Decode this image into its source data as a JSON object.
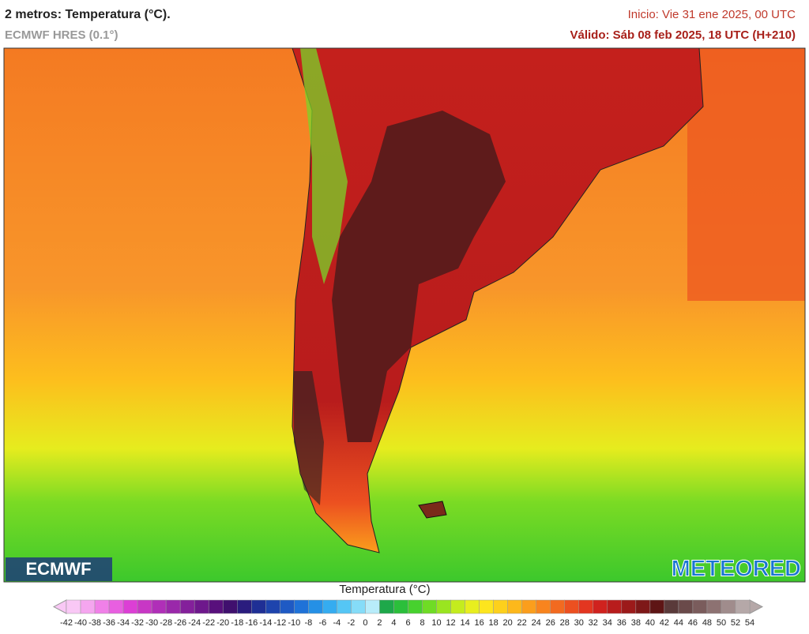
{
  "header": {
    "title": "2 metros: Temperatura (°C).",
    "model": "ECMWF HRES (0.1°)",
    "init": "Inicio: Vie 31 ene 2025, 00 UTC",
    "valid": "Válido: Sáb 08 feb 2025, 18 UTC (H+210)"
  },
  "logos": {
    "left": "ECMWF",
    "right": "METEORED"
  },
  "legend": {
    "title": "Temperatura (°C)",
    "ticks": [
      -42,
      -40,
      -38,
      -36,
      -34,
      -32,
      -30,
      -28,
      -26,
      -24,
      -22,
      -20,
      -18,
      -16,
      -14,
      -12,
      -10,
      -8,
      -6,
      -4,
      -2,
      0,
      2,
      4,
      6,
      8,
      10,
      12,
      14,
      16,
      18,
      20,
      22,
      24,
      26,
      28,
      30,
      32,
      34,
      36,
      38,
      40,
      42,
      44,
      46,
      48,
      50,
      52,
      54
    ]
  }
}
